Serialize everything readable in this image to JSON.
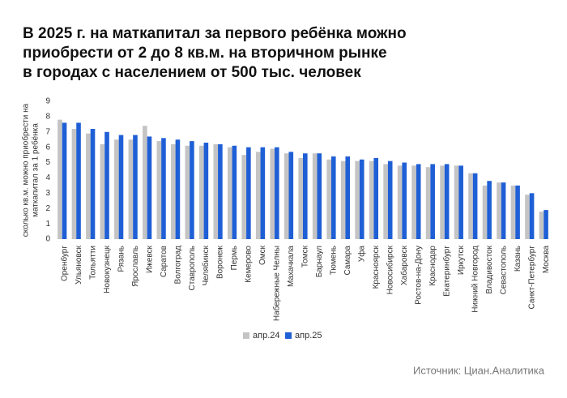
{
  "chart_data": {
    "type": "bar",
    "title": [
      "В 2025 г. на маткапитал за первого ребёнка можно",
      "приобрести от 2 до 8 кв.м. на вторичном рынке",
      "в городах с населением от 500 тыс. человек"
    ],
    "y_label": [
      "сколько кв.м. можно приобрести на",
      "маткапитал за 1 ребёнка"
    ],
    "source": "Источник: Циан.Аналитика",
    "categories": [
      "Оренбург",
      "Ульяновск",
      "Тольятти",
      "Новокузнецк",
      "Рязань",
      "Ярославль",
      "Ижевск",
      "Саратов",
      "Волгоград",
      "Ставрополь",
      "Челябинск",
      "Воронеж",
      "Пермь",
      "Кемерово",
      "Омск",
      "Набережные Челны",
      "Махачкала",
      "Томск",
      "Барнаул",
      "Тюмень",
      "Самара",
      "Уфа",
      "Красноярск",
      "Новосибирск",
      "Хабаровск",
      "Ростов-на-Дону",
      "Краснодар",
      "Екатеринбург",
      "Иркутск",
      "Нижний Новгород",
      "Владивосток",
      "Севастополь",
      "Казань",
      "Санкт-Петербург",
      "Москва"
    ],
    "series": [
      {
        "name": "апр.24",
        "color": "#c4c4c4",
        "values": [
          7.8,
          7.2,
          6.9,
          6.2,
          6.5,
          6.5,
          7.4,
          6.4,
          6.2,
          6.1,
          6.1,
          6.2,
          6.0,
          5.5,
          5.7,
          5.9,
          5.6,
          5.3,
          5.6,
          5.2,
          5.1,
          5.1,
          5.1,
          4.9,
          4.8,
          4.8,
          4.7,
          4.8,
          4.8,
          4.3,
          3.5,
          3.7,
          3.5,
          2.9,
          1.8
        ]
      },
      {
        "name": "апр.25",
        "color": "#1f5fd6",
        "values": [
          7.6,
          7.6,
          7.2,
          7.0,
          6.8,
          6.8,
          6.7,
          6.6,
          6.5,
          6.4,
          6.3,
          6.2,
          6.1,
          6.0,
          6.0,
          6.0,
          5.7,
          5.6,
          5.6,
          5.4,
          5.4,
          5.2,
          5.3,
          5.1,
          5.0,
          4.9,
          4.9,
          4.9,
          4.8,
          4.3,
          3.8,
          3.7,
          3.5,
          3.0,
          1.9
        ]
      }
    ],
    "ylim": [
      0,
      9
    ],
    "yticks": [
      0,
      1,
      2,
      3,
      4,
      5,
      6,
      7,
      8,
      9
    ],
    "grid": false,
    "legend": "bottom"
  }
}
